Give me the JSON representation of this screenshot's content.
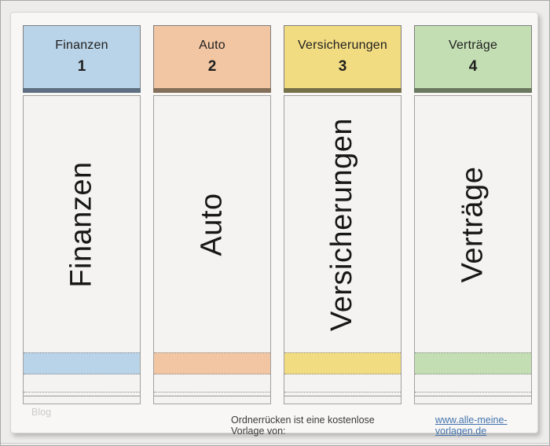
{
  "window": {
    "watermark": "Blog",
    "footer": {
      "label": "Ordnerrücken ist eine kostenlose Vorlage von:",
      "link_text": "www.alle-meine-vorlagen.de",
      "link_color": "#4273ad"
    }
  },
  "folders": [
    {
      "tab_title": "Finanzen",
      "tab_number": "1",
      "spine_label": "Finanzen",
      "color": "#b9d3e8",
      "bar_color": "#5d6f80"
    },
    {
      "tab_title": "Auto",
      "tab_number": "2",
      "spine_label": "Auto",
      "color": "#f2c6a2",
      "bar_color": "#84705a"
    },
    {
      "tab_title": "Versicherungen",
      "tab_number": "3",
      "spine_label": "Versicherungen",
      "color": "#f2dc82",
      "bar_color": "#767049"
    },
    {
      "tab_title": "Verträge",
      "tab_number": "4",
      "spine_label": "Verträge",
      "color": "#c3deb3",
      "bar_color": "#69785e"
    }
  ]
}
